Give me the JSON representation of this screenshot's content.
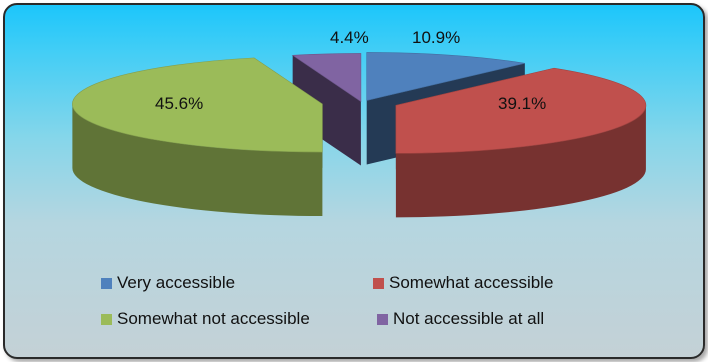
{
  "chart_data": {
    "type": "pie",
    "style": "3d-exploded",
    "categories": [
      "Very accessible",
      "Somewhat accessible",
      "Somewhat not accessible",
      "Not accessible at all"
    ],
    "values": [
      10.9,
      39.1,
      45.6,
      4.4
    ],
    "labels": [
      "10.9%",
      "39.1%",
      "45.6%",
      "4.4%"
    ],
    "colors": [
      "#4f81bd",
      "#c0504d",
      "#9bbb59",
      "#8064a2"
    ],
    "title": "",
    "legend_position": "bottom"
  }
}
